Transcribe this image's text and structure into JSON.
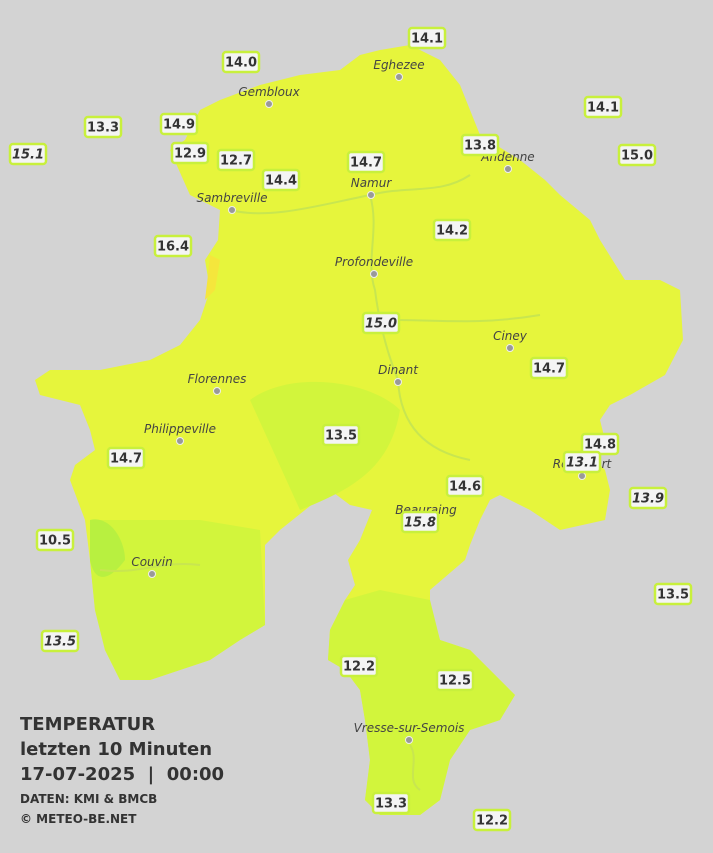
{
  "title": {
    "line1": "TEMPERATUR",
    "line2": "letzten 10 Minuten",
    "line3": "17-07-2025  |  00:00",
    "source": "DATEN: KMI & BMCB",
    "copyright": "© METEO-BE.NET"
  },
  "cities": [
    "Eghezee",
    "Gembloux",
    "Andenne",
    "Namur",
    "Sambreville",
    "Profondeville",
    "Ciney",
    "Dinant",
    "Florennes",
    "Philippeville",
    "Rochefort",
    "Beauraing",
    "Couvin",
    "Vresse-sur-Semois"
  ],
  "stations": [
    {
      "value": "14.1",
      "italic": false
    },
    {
      "value": "14.0",
      "italic": false
    },
    {
      "value": "14.1",
      "italic": false
    },
    {
      "value": "13.3",
      "italic": false
    },
    {
      "value": "14.9",
      "italic": false
    },
    {
      "value": "15.1",
      "italic": true
    },
    {
      "value": "12.9",
      "italic": false
    },
    {
      "value": "12.7",
      "italic": false
    },
    {
      "value": "13.8",
      "italic": false
    },
    {
      "value": "15.0",
      "italic": false
    },
    {
      "value": "14.7",
      "italic": false
    },
    {
      "value": "14.4",
      "italic": false
    },
    {
      "value": "14.2",
      "italic": false
    },
    {
      "value": "16.4",
      "italic": false
    },
    {
      "value": "15.0",
      "italic": true
    },
    {
      "value": "14.7",
      "italic": false
    },
    {
      "value": "13.5",
      "italic": false
    },
    {
      "value": "14.8",
      "italic": false
    },
    {
      "value": "13.1",
      "italic": true
    },
    {
      "value": "14.7",
      "italic": false
    },
    {
      "value": "14.6",
      "italic": false
    },
    {
      "value": "13.9",
      "italic": true
    },
    {
      "value": "15.8",
      "italic": true
    },
    {
      "value": "10.5",
      "italic": false
    },
    {
      "value": "13.5",
      "italic": false
    },
    {
      "value": "13.5",
      "italic": true
    },
    {
      "value": "12.2",
      "italic": false
    },
    {
      "value": "12.5",
      "italic": false
    },
    {
      "value": "13.3",
      "italic": false
    },
    {
      "value": "12.2",
      "italic": false
    }
  ]
}
